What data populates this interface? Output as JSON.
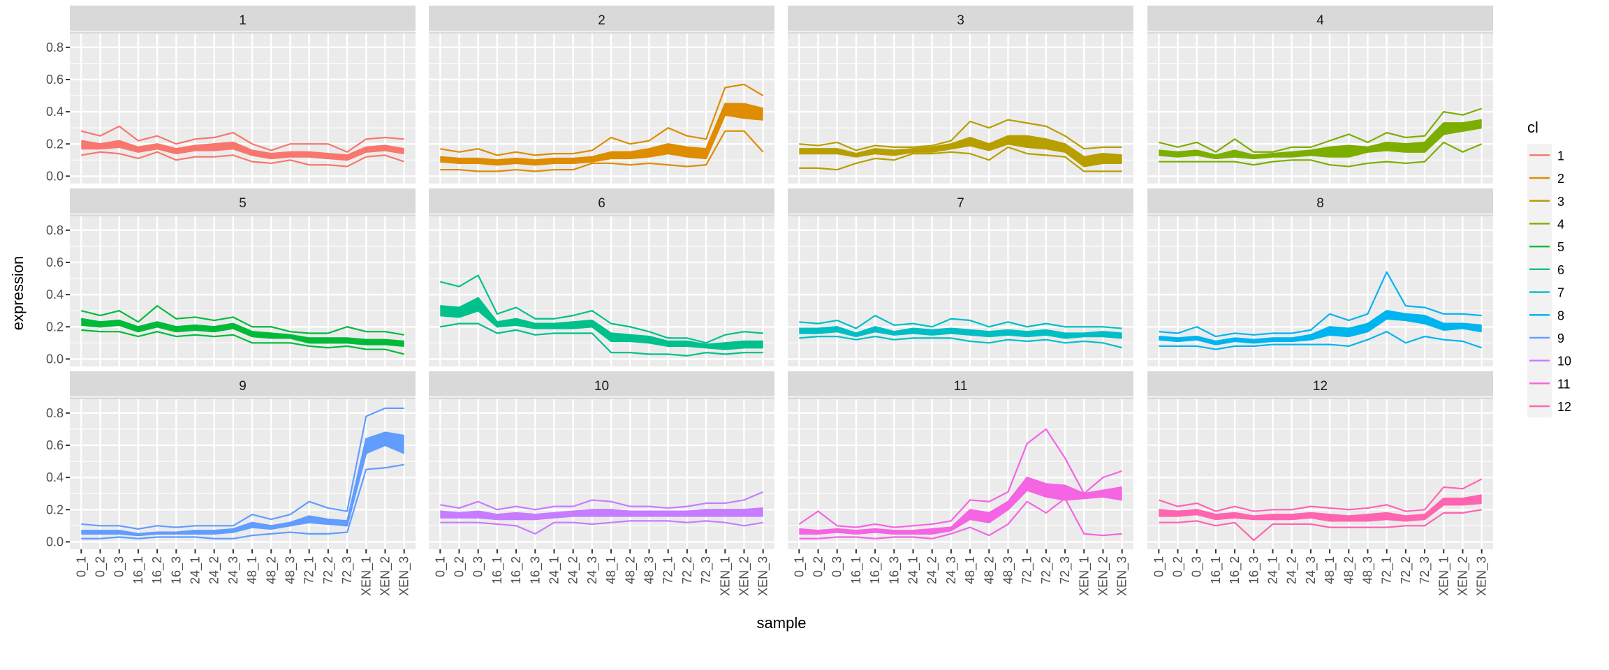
{
  "chart_data": {
    "type": "line",
    "facet_by": "cl",
    "xlabel": "sample",
    "ylabel": "expression",
    "categories": [
      "0_1",
      "0_2",
      "0_3",
      "16_1",
      "16_2",
      "16_3",
      "24_1",
      "24_2",
      "24_3",
      "48_1",
      "48_2",
      "48_3",
      "72_1",
      "72_2",
      "72_3",
      "XEN_1",
      "XEN_2",
      "XEN_3"
    ],
    "ylim": [
      -0.046,
      0.886
    ],
    "yticks": [
      0.0,
      0.2,
      0.4,
      0.6,
      0.8
    ],
    "ytick_labels": [
      "0.0",
      "0.2",
      "0.4",
      "0.6",
      "0.8"
    ],
    "grid": true,
    "legend": {
      "title": "cl",
      "placement": "right",
      "labels": [
        "1",
        "2",
        "3",
        "4",
        "5",
        "6",
        "7",
        "8",
        "9",
        "10",
        "11",
        "12"
      ]
    },
    "colors": [
      "#F8766D",
      "#DE8C00",
      "#B79F00",
      "#7CAE00",
      "#00BA38",
      "#00C08B",
      "#00BFC4",
      "#00B4F0",
      "#619CFF",
      "#C77CFF",
      "#F564E3",
      "#FF64B0"
    ],
    "panels": [
      {
        "label": "1",
        "lines": [
          [
            0.28,
            0.25,
            0.31,
            0.22,
            0.25,
            0.2,
            0.23,
            0.24,
            0.27,
            0.2,
            0.16,
            0.2,
            0.2,
            0.2,
            0.15,
            0.23,
            0.24,
            0.23
          ],
          [
            0.22,
            0.2,
            0.22,
            0.18,
            0.2,
            0.17,
            0.19,
            0.2,
            0.21,
            0.16,
            0.14,
            0.15,
            0.15,
            0.14,
            0.13,
            0.18,
            0.19,
            0.17
          ],
          [
            0.17,
            0.17,
            0.18,
            0.15,
            0.17,
            0.14,
            0.16,
            0.16,
            0.17,
            0.13,
            0.11,
            0.12,
            0.12,
            0.11,
            0.1,
            0.15,
            0.16,
            0.14
          ],
          [
            0.13,
            0.15,
            0.14,
            0.11,
            0.15,
            0.1,
            0.12,
            0.12,
            0.13,
            0.09,
            0.08,
            0.1,
            0.07,
            0.07,
            0.06,
            0.12,
            0.13,
            0.09
          ]
        ]
      },
      {
        "label": "2",
        "lines": [
          [
            0.17,
            0.15,
            0.17,
            0.13,
            0.15,
            0.13,
            0.14,
            0.14,
            0.16,
            0.24,
            0.2,
            0.22,
            0.3,
            0.25,
            0.23,
            0.55,
            0.57,
            0.5
          ],
          [
            0.12,
            0.11,
            0.11,
            0.1,
            0.11,
            0.1,
            0.11,
            0.11,
            0.12,
            0.15,
            0.15,
            0.17,
            0.2,
            0.18,
            0.17,
            0.45,
            0.45,
            0.42
          ],
          [
            0.09,
            0.08,
            0.08,
            0.07,
            0.08,
            0.07,
            0.08,
            0.08,
            0.09,
            0.11,
            0.11,
            0.12,
            0.14,
            0.12,
            0.11,
            0.38,
            0.36,
            0.35
          ],
          [
            0.04,
            0.04,
            0.03,
            0.03,
            0.04,
            0.03,
            0.04,
            0.04,
            0.08,
            0.08,
            0.07,
            0.08,
            0.07,
            0.06,
            0.07,
            0.28,
            0.28,
            0.15
          ]
        ]
      },
      {
        "label": "3",
        "lines": [
          [
            0.2,
            0.19,
            0.21,
            0.16,
            0.19,
            0.18,
            0.18,
            0.19,
            0.22,
            0.34,
            0.3,
            0.35,
            0.33,
            0.31,
            0.25,
            0.17,
            0.18,
            0.18
          ],
          [
            0.17,
            0.17,
            0.17,
            0.14,
            0.17,
            0.16,
            0.17,
            0.18,
            0.2,
            0.24,
            0.2,
            0.25,
            0.25,
            0.23,
            0.2,
            0.12,
            0.14,
            0.13
          ],
          [
            0.14,
            0.14,
            0.14,
            0.12,
            0.14,
            0.13,
            0.15,
            0.15,
            0.17,
            0.19,
            0.16,
            0.2,
            0.18,
            0.17,
            0.15,
            0.06,
            0.08,
            0.08
          ],
          [
            0.05,
            0.05,
            0.04,
            0.08,
            0.11,
            0.1,
            0.14,
            0.14,
            0.15,
            0.14,
            0.1,
            0.18,
            0.14,
            0.13,
            0.12,
            0.03,
            0.03,
            0.03
          ]
        ]
      },
      {
        "label": "4",
        "lines": [
          [
            0.21,
            0.18,
            0.21,
            0.15,
            0.23,
            0.15,
            0.15,
            0.18,
            0.18,
            0.22,
            0.26,
            0.21,
            0.27,
            0.24,
            0.25,
            0.4,
            0.38,
            0.42
          ],
          [
            0.16,
            0.15,
            0.16,
            0.13,
            0.16,
            0.13,
            0.14,
            0.15,
            0.16,
            0.18,
            0.19,
            0.18,
            0.21,
            0.2,
            0.21,
            0.33,
            0.33,
            0.35
          ],
          [
            0.13,
            0.12,
            0.13,
            0.11,
            0.12,
            0.11,
            0.12,
            0.12,
            0.13,
            0.12,
            0.12,
            0.15,
            0.16,
            0.15,
            0.15,
            0.26,
            0.28,
            0.3
          ],
          [
            0.09,
            0.09,
            0.09,
            0.09,
            0.09,
            0.07,
            0.09,
            0.1,
            0.1,
            0.07,
            0.06,
            0.08,
            0.09,
            0.08,
            0.09,
            0.21,
            0.15,
            0.2
          ]
        ]
      },
      {
        "label": "5",
        "lines": [
          [
            0.3,
            0.27,
            0.3,
            0.23,
            0.33,
            0.25,
            0.26,
            0.24,
            0.26,
            0.2,
            0.2,
            0.17,
            0.16,
            0.16,
            0.2,
            0.17,
            0.17,
            0.15
          ],
          [
            0.25,
            0.23,
            0.24,
            0.2,
            0.23,
            0.2,
            0.21,
            0.2,
            0.22,
            0.17,
            0.16,
            0.15,
            0.13,
            0.13,
            0.13,
            0.12,
            0.12,
            0.11
          ],
          [
            0.21,
            0.2,
            0.21,
            0.17,
            0.2,
            0.17,
            0.18,
            0.17,
            0.19,
            0.14,
            0.13,
            0.13,
            0.1,
            0.1,
            0.1,
            0.09,
            0.09,
            0.08
          ],
          [
            0.18,
            0.17,
            0.17,
            0.14,
            0.17,
            0.14,
            0.15,
            0.14,
            0.15,
            0.1,
            0.1,
            0.1,
            0.08,
            0.07,
            0.08,
            0.06,
            0.06,
            0.03
          ]
        ]
      },
      {
        "label": "6",
        "lines": [
          [
            0.48,
            0.45,
            0.52,
            0.28,
            0.32,
            0.25,
            0.25,
            0.27,
            0.3,
            0.22,
            0.2,
            0.17,
            0.13,
            0.13,
            0.1,
            0.15,
            0.17,
            0.16
          ],
          [
            0.33,
            0.32,
            0.38,
            0.23,
            0.25,
            0.22,
            0.22,
            0.23,
            0.24,
            0.16,
            0.15,
            0.14,
            0.11,
            0.11,
            0.09,
            0.1,
            0.11,
            0.11
          ],
          [
            0.27,
            0.26,
            0.3,
            0.2,
            0.21,
            0.19,
            0.19,
            0.19,
            0.2,
            0.11,
            0.11,
            0.1,
            0.08,
            0.08,
            0.07,
            0.06,
            0.07,
            0.07
          ],
          [
            0.2,
            0.22,
            0.22,
            0.16,
            0.18,
            0.15,
            0.16,
            0.16,
            0.16,
            0.04,
            0.04,
            0.03,
            0.03,
            0.02,
            0.04,
            0.03,
            0.04,
            0.04
          ]
        ]
      },
      {
        "label": "7",
        "lines": [
          [
            0.23,
            0.22,
            0.24,
            0.19,
            0.27,
            0.21,
            0.22,
            0.2,
            0.25,
            0.24,
            0.2,
            0.23,
            0.2,
            0.22,
            0.2,
            0.2,
            0.2,
            0.19
          ],
          [
            0.19,
            0.19,
            0.2,
            0.16,
            0.2,
            0.17,
            0.19,
            0.18,
            0.19,
            0.18,
            0.17,
            0.18,
            0.17,
            0.18,
            0.16,
            0.16,
            0.17,
            0.16
          ],
          [
            0.16,
            0.16,
            0.17,
            0.14,
            0.17,
            0.15,
            0.16,
            0.15,
            0.16,
            0.15,
            0.14,
            0.15,
            0.14,
            0.15,
            0.13,
            0.14,
            0.14,
            0.13
          ],
          [
            0.13,
            0.14,
            0.14,
            0.12,
            0.14,
            0.12,
            0.13,
            0.13,
            0.13,
            0.11,
            0.1,
            0.12,
            0.11,
            0.12,
            0.1,
            0.11,
            0.1,
            0.07
          ]
        ]
      },
      {
        "label": "8",
        "lines": [
          [
            0.17,
            0.16,
            0.2,
            0.14,
            0.16,
            0.15,
            0.16,
            0.16,
            0.18,
            0.28,
            0.24,
            0.28,
            0.54,
            0.33,
            0.32,
            0.28,
            0.28,
            0.27
          ],
          [
            0.14,
            0.13,
            0.14,
            0.11,
            0.13,
            0.12,
            0.13,
            0.13,
            0.15,
            0.2,
            0.19,
            0.22,
            0.3,
            0.28,
            0.27,
            0.22,
            0.22,
            0.21
          ],
          [
            0.12,
            0.11,
            0.12,
            0.09,
            0.11,
            0.1,
            0.11,
            0.11,
            0.12,
            0.15,
            0.14,
            0.17,
            0.25,
            0.24,
            0.22,
            0.18,
            0.19,
            0.17
          ],
          [
            0.08,
            0.08,
            0.08,
            0.06,
            0.08,
            0.08,
            0.09,
            0.09,
            0.09,
            0.09,
            0.08,
            0.12,
            0.17,
            0.1,
            0.14,
            0.12,
            0.11,
            0.07
          ]
        ]
      },
      {
        "label": "9",
        "lines": [
          [
            0.11,
            0.1,
            0.1,
            0.08,
            0.1,
            0.09,
            0.1,
            0.1,
            0.1,
            0.17,
            0.14,
            0.17,
            0.25,
            0.21,
            0.19,
            0.78,
            0.83,
            0.83
          ],
          [
            0.07,
            0.07,
            0.07,
            0.05,
            0.06,
            0.06,
            0.07,
            0.07,
            0.08,
            0.12,
            0.1,
            0.12,
            0.16,
            0.14,
            0.13,
            0.64,
            0.68,
            0.66
          ],
          [
            0.05,
            0.05,
            0.05,
            0.04,
            0.05,
            0.05,
            0.05,
            0.05,
            0.06,
            0.09,
            0.08,
            0.1,
            0.12,
            0.11,
            0.1,
            0.55,
            0.6,
            0.55
          ],
          [
            0.02,
            0.02,
            0.03,
            0.02,
            0.03,
            0.03,
            0.03,
            0.02,
            0.02,
            0.04,
            0.05,
            0.06,
            0.05,
            0.05,
            0.06,
            0.45,
            0.46,
            0.48
          ]
        ]
      },
      {
        "label": "10",
        "lines": [
          [
            0.23,
            0.21,
            0.25,
            0.2,
            0.22,
            0.2,
            0.22,
            0.22,
            0.26,
            0.25,
            0.22,
            0.22,
            0.21,
            0.22,
            0.24,
            0.24,
            0.26,
            0.31
          ],
          [
            0.19,
            0.18,
            0.19,
            0.17,
            0.18,
            0.17,
            0.18,
            0.19,
            0.2,
            0.2,
            0.19,
            0.19,
            0.19,
            0.19,
            0.2,
            0.2,
            0.2,
            0.21
          ],
          [
            0.15,
            0.15,
            0.15,
            0.14,
            0.14,
            0.14,
            0.15,
            0.16,
            0.16,
            0.16,
            0.16,
            0.16,
            0.16,
            0.16,
            0.16,
            0.16,
            0.16,
            0.16
          ],
          [
            0.12,
            0.12,
            0.12,
            0.11,
            0.1,
            0.05,
            0.12,
            0.12,
            0.11,
            0.12,
            0.13,
            0.13,
            0.13,
            0.12,
            0.13,
            0.12,
            0.1,
            0.12
          ]
        ]
      },
      {
        "label": "11",
        "lines": [
          [
            0.11,
            0.19,
            0.1,
            0.09,
            0.11,
            0.09,
            0.1,
            0.11,
            0.13,
            0.26,
            0.25,
            0.31,
            0.61,
            0.7,
            0.52,
            0.3,
            0.4,
            0.44
          ],
          [
            0.08,
            0.07,
            0.08,
            0.07,
            0.08,
            0.07,
            0.07,
            0.08,
            0.09,
            0.2,
            0.18,
            0.25,
            0.4,
            0.36,
            0.35,
            0.3,
            0.32,
            0.34
          ],
          [
            0.05,
            0.05,
            0.06,
            0.05,
            0.06,
            0.05,
            0.05,
            0.05,
            0.07,
            0.14,
            0.12,
            0.2,
            0.32,
            0.28,
            0.26,
            0.27,
            0.28,
            0.26
          ],
          [
            0.02,
            0.02,
            0.03,
            0.03,
            0.02,
            0.03,
            0.03,
            0.02,
            0.05,
            0.09,
            0.04,
            0.11,
            0.25,
            0.18,
            0.27,
            0.05,
            0.04,
            0.05
          ]
        ]
      },
      {
        "label": "12",
        "lines": [
          [
            0.26,
            0.22,
            0.24,
            0.19,
            0.22,
            0.19,
            0.2,
            0.2,
            0.22,
            0.21,
            0.2,
            0.21,
            0.23,
            0.19,
            0.2,
            0.34,
            0.33,
            0.39
          ],
          [
            0.2,
            0.19,
            0.2,
            0.17,
            0.18,
            0.16,
            0.17,
            0.17,
            0.18,
            0.17,
            0.16,
            0.17,
            0.18,
            0.16,
            0.17,
            0.27,
            0.27,
            0.29
          ],
          [
            0.16,
            0.16,
            0.17,
            0.14,
            0.15,
            0.14,
            0.14,
            0.14,
            0.15,
            0.13,
            0.13,
            0.13,
            0.14,
            0.13,
            0.14,
            0.23,
            0.23,
            0.24
          ],
          [
            0.12,
            0.12,
            0.13,
            0.1,
            0.12,
            0.01,
            0.11,
            0.11,
            0.11,
            0.09,
            0.09,
            0.09,
            0.09,
            0.1,
            0.1,
            0.18,
            0.18,
            0.2
          ]
        ]
      }
    ]
  }
}
